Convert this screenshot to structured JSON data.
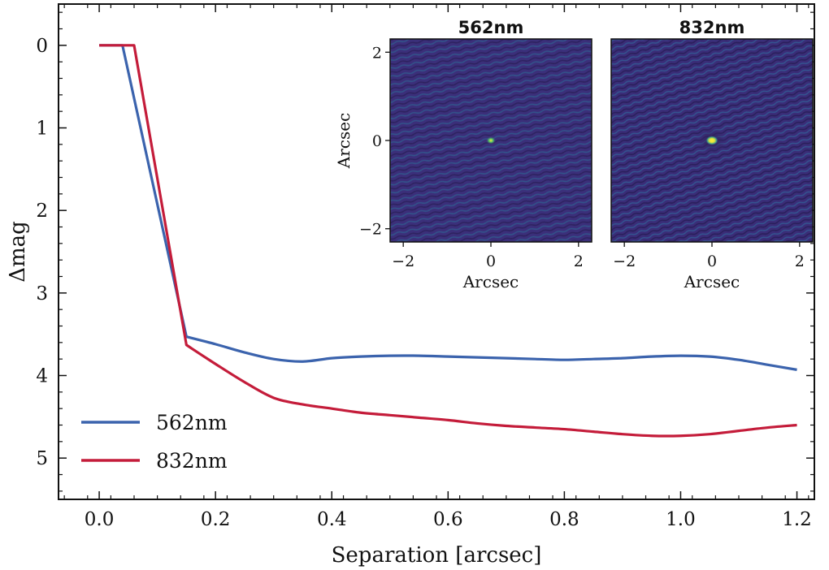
{
  "chart_data": {
    "type": "line",
    "xlabel": "Separation [arcsec]",
    "ylabel": "Δmag",
    "xlim": [
      -0.07,
      1.23
    ],
    "ylim": [
      5.5,
      -0.5
    ],
    "y_inverted": true,
    "grid": false,
    "legend_position": "bottom-left",
    "xticks": [
      0.0,
      0.2,
      0.4,
      0.6,
      0.8,
      1.0,
      1.2
    ],
    "xtick_labels": [
      "0.0",
      "0.2",
      "0.4",
      "0.6",
      "0.8",
      "1.0",
      "1.2"
    ],
    "yticks": [
      0,
      1,
      2,
      3,
      4,
      5
    ],
    "ytick_labels": [
      "0",
      "1",
      "2",
      "3",
      "4",
      "5"
    ],
    "series": [
      {
        "name": "562nm",
        "color": "#3b63ad",
        "x": [
          0.0,
          0.04,
          0.15,
          0.2,
          0.25,
          0.3,
          0.35,
          0.4,
          0.45,
          0.5,
          0.55,
          0.6,
          0.65,
          0.7,
          0.75,
          0.8,
          0.85,
          0.9,
          0.95,
          1.0,
          1.05,
          1.1,
          1.15,
          1.2
        ],
        "y": [
          0.0,
          0.0,
          3.53,
          3.62,
          3.72,
          3.8,
          3.83,
          3.79,
          3.77,
          3.76,
          3.76,
          3.77,
          3.78,
          3.79,
          3.8,
          3.81,
          3.8,
          3.79,
          3.77,
          3.76,
          3.77,
          3.81,
          3.87,
          3.93
        ]
      },
      {
        "name": "832nm",
        "color": "#c41c3a",
        "x": [
          0.0,
          0.06,
          0.15,
          0.2,
          0.25,
          0.3,
          0.35,
          0.4,
          0.45,
          0.5,
          0.55,
          0.6,
          0.65,
          0.7,
          0.75,
          0.8,
          0.85,
          0.9,
          0.95,
          1.0,
          1.05,
          1.1,
          1.15,
          1.2
        ],
        "y": [
          0.0,
          0.0,
          3.63,
          3.86,
          4.08,
          4.27,
          4.35,
          4.4,
          4.45,
          4.48,
          4.51,
          4.54,
          4.58,
          4.61,
          4.63,
          4.65,
          4.68,
          4.71,
          4.73,
          4.73,
          4.71,
          4.67,
          4.63,
          4.6
        ]
      }
    ],
    "insets": [
      {
        "title": "562nm",
        "xlabel": "Arcsec",
        "ylabel": "Arcsec",
        "xlim": [
          -2.3,
          2.3
        ],
        "ylim": [
          -2.3,
          2.3
        ],
        "xticks": [
          -2,
          0,
          2
        ],
        "xtick_labels": [
          "−2",
          "0",
          "2"
        ],
        "yticks": [
          -2,
          0,
          2
        ],
        "ytick_labels": [
          "−2",
          "0",
          "2"
        ],
        "image": "speckle reconstruction, point source at center",
        "colormap": "viridis",
        "background_color": "#3b2f7a",
        "peak_color": "#f5ea3a"
      },
      {
        "title": "832nm",
        "xlabel": "Arcsec",
        "xlim": [
          -2.3,
          2.3
        ],
        "ylim": [
          -2.3,
          2.3
        ],
        "xticks": [
          -2,
          0,
          2
        ],
        "xtick_labels": [
          "−2",
          "0",
          "2"
        ],
        "image": "speckle reconstruction, point source at center",
        "colormap": "viridis",
        "background_color": "#3b2f7a",
        "peak_color": "#f5ea3a"
      }
    ]
  }
}
